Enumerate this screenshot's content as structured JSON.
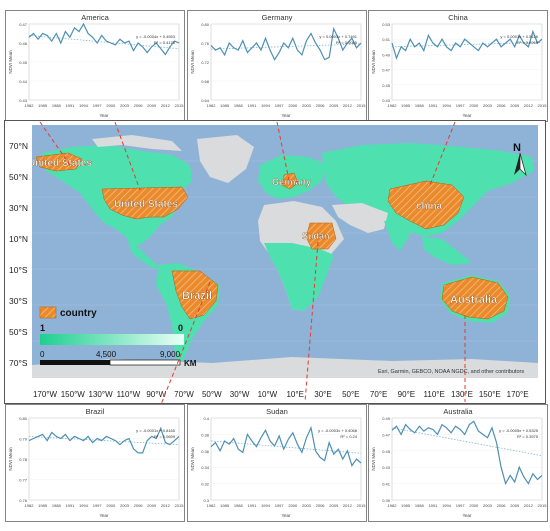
{
  "chart_data": [
    {
      "type": "line",
      "title": "America",
      "xlabel": "Year",
      "ylabel": "NDVI Mean",
      "x_ticks": [
        "1982",
        "1985",
        "1988",
        "1991",
        "1994",
        "1997",
        "2000",
        "2003",
        "2006",
        "2009",
        "2012",
        "2015"
      ],
      "y_ticks": [
        "0.43",
        "0.44",
        "0.45",
        "0.46",
        "0.47"
      ],
      "ylim": [
        0.43,
        0.47
      ],
      "equation": "y = -0.0004x + 0.4553",
      "r2": "R² = 0.4175",
      "x": [
        1982,
        1983,
        1984,
        1985,
        1986,
        1987,
        1988,
        1989,
        1990,
        1991,
        1992,
        1993,
        1994,
        1995,
        1996,
        1997,
        1998,
        1999,
        2000,
        2001,
        2002,
        2003,
        2004,
        2005,
        2006,
        2007,
        2008,
        2009,
        2010,
        2011,
        2012,
        2013,
        2014,
        2015
      ],
      "values": [
        0.463,
        0.465,
        0.462,
        0.465,
        0.464,
        0.461,
        0.465,
        0.46,
        0.466,
        0.463,
        0.468,
        0.466,
        0.47,
        0.465,
        0.463,
        0.46,
        0.464,
        0.461,
        0.46,
        0.459,
        0.462,
        0.46,
        0.461,
        0.456,
        0.46,
        0.458,
        0.455,
        0.458,
        0.46,
        0.457,
        0.454,
        0.458,
        0.461,
        0.46
      ],
      "trend": [
        0.464,
        0.457
      ]
    },
    {
      "type": "line",
      "title": "Germany",
      "xlabel": "Year",
      "ylabel": "NDVI Mean",
      "x_ticks": [
        "1982",
        "1985",
        "1988",
        "1991",
        "1994",
        "1997",
        "2000",
        "2003",
        "2006",
        "2009",
        "2012",
        "2015"
      ],
      "y_ticks": [
        "0.64",
        "0.68",
        "0.72",
        "0.76",
        "0.80"
      ],
      "ylim": [
        0.64,
        0.8
      ],
      "equation": "y = 0.0003x + 0.7491",
      "r2": "R² = 0.0085",
      "x": [
        1982,
        1983,
        1984,
        1985,
        1986,
        1987,
        1988,
        1989,
        1990,
        1991,
        1992,
        1993,
        1994,
        1995,
        1996,
        1997,
        1998,
        1999,
        2000,
        2001,
        2002,
        2003,
        2004,
        2005,
        2006,
        2007,
        2008,
        2009,
        2010,
        2011,
        2012,
        2013,
        2014,
        2015
      ],
      "values": [
        0.755,
        0.745,
        0.75,
        0.735,
        0.76,
        0.75,
        0.745,
        0.765,
        0.74,
        0.75,
        0.76,
        0.745,
        0.77,
        0.745,
        0.725,
        0.74,
        0.76,
        0.75,
        0.77,
        0.745,
        0.735,
        0.765,
        0.78,
        0.76,
        0.745,
        0.725,
        0.73,
        0.79,
        0.77,
        0.745,
        0.76,
        0.77,
        0.75,
        0.76
      ],
      "trend": [
        0.747,
        0.758
      ]
    },
    {
      "type": "line",
      "title": "China",
      "xlabel": "Year",
      "ylabel": "NDVI Mean",
      "x_ticks": [
        "1982",
        "1985",
        "1988",
        "1991",
        "1994",
        "1997",
        "2000",
        "2003",
        "2006",
        "2009",
        "2012",
        "2015"
      ],
      "y_ticks": [
        "0.43",
        "0.45",
        "0.47",
        "0.49",
        "0.51",
        "0.53"
      ],
      "ylim": [
        0.43,
        0.53
      ],
      "equation": "y = 0.0001x + 0.5126",
      "r2": "R² = 0.0265",
      "x": [
        1982,
        1983,
        1984,
        1985,
        1986,
        1987,
        1988,
        1989,
        1990,
        1991,
        1992,
        1993,
        1994,
        1995,
        1996,
        1997,
        1998,
        1999,
        2000,
        2001,
        2002,
        2003,
        2004,
        2005,
        2006,
        2007,
        2008,
        2009,
        2010,
        2011,
        2012,
        2013,
        2014,
        2015
      ],
      "values": [
        0.505,
        0.485,
        0.5,
        0.495,
        0.51,
        0.5,
        0.505,
        0.495,
        0.515,
        0.505,
        0.5,
        0.51,
        0.5,
        0.495,
        0.505,
        0.5,
        0.51,
        0.505,
        0.5,
        0.495,
        0.505,
        0.5,
        0.505,
        0.51,
        0.5,
        0.505,
        0.51,
        0.5,
        0.515,
        0.505,
        0.5,
        0.52,
        0.505,
        0.51
      ],
      "trend": [
        0.5,
        0.506
      ]
    },
    {
      "type": "line",
      "title": "Brazil",
      "xlabel": "Year",
      "ylabel": "NDVI Mean",
      "x_ticks": [
        "1982",
        "1985",
        "1988",
        "1991",
        "1994",
        "1997",
        "2000",
        "2003",
        "2006",
        "2009",
        "2012",
        "2015"
      ],
      "y_ticks": [
        "0.76",
        "0.77",
        "0.78",
        "0.79",
        "0.80"
      ],
      "ylim": [
        0.76,
        0.8
      ],
      "equation": "y = -0.0001x + 0.8165",
      "r2": "R² = 0.0699",
      "x": [
        1982,
        1983,
        1984,
        1985,
        1986,
        1987,
        1988,
        1989,
        1990,
        1991,
        1992,
        1993,
        1994,
        1995,
        1996,
        1997,
        1998,
        1999,
        2000,
        2001,
        2002,
        2003,
        2004,
        2005,
        2006,
        2007,
        2008,
        2009,
        2010,
        2011,
        2012,
        2013,
        2014,
        2015
      ],
      "values": [
        0.789,
        0.79,
        0.791,
        0.792,
        0.789,
        0.793,
        0.791,
        0.79,
        0.792,
        0.789,
        0.791,
        0.79,
        0.789,
        0.791,
        0.788,
        0.79,
        0.789,
        0.791,
        0.79,
        0.789,
        0.787,
        0.789,
        0.79,
        0.785,
        0.783,
        0.783,
        0.789,
        0.791,
        0.79,
        0.795,
        0.788,
        0.787,
        0.789,
        0.791
      ],
      "trend": [
        0.791,
        0.787
      ]
    },
    {
      "type": "line",
      "title": "Sudan",
      "xlabel": "Year",
      "ylabel": "NDVI Mean",
      "x_ticks": [
        "1982",
        "1985",
        "1988",
        "1991",
        "1994",
        "1997",
        "2000",
        "2003",
        "2006",
        "2009",
        "2012",
        "2015"
      ],
      "y_ticks": [
        "0.3",
        "0.32",
        "0.34",
        "0.36",
        "0.38",
        "0.4"
      ],
      "ylim": [
        0.3,
        0.4
      ],
      "equation": "y = -0.0003x + 0.4068",
      "r2": "R² = 0.24",
      "x": [
        1982,
        1983,
        1984,
        1985,
        1986,
        1987,
        1988,
        1989,
        1990,
        1991,
        1992,
        1993,
        1994,
        1995,
        1996,
        1997,
        1998,
        1999,
        2000,
        2001,
        2002,
        2003,
        2004,
        2005,
        2006,
        2007,
        2008,
        2009,
        2010,
        2011,
        2012,
        2013,
        2014,
        2015
      ],
      "values": [
        0.365,
        0.37,
        0.36,
        0.372,
        0.368,
        0.375,
        0.362,
        0.358,
        0.38,
        0.372,
        0.365,
        0.376,
        0.385,
        0.372,
        0.366,
        0.378,
        0.362,
        0.374,
        0.382,
        0.368,
        0.358,
        0.376,
        0.388,
        0.36,
        0.352,
        0.348,
        0.37,
        0.356,
        0.362,
        0.35,
        0.36,
        0.342,
        0.35,
        0.345
      ],
      "trend": [
        0.372,
        0.357
      ]
    },
    {
      "type": "line",
      "title": "Australia",
      "xlabel": "Year",
      "ylabel": "NDVI Mean",
      "x_ticks": [
        "1982",
        "1985",
        "1988",
        "1991",
        "1994",
        "1997",
        "2000",
        "2003",
        "2006",
        "2009",
        "2012",
        "2015"
      ],
      "y_ticks": [
        "0.39",
        "0.41",
        "0.43",
        "0.45",
        "0.47",
        "0.49"
      ],
      "ylim": [
        0.39,
        0.49
      ],
      "equation": "y = -0.0005x + 0.5325",
      "r2": "R² = 0.3975",
      "x": [
        1982,
        1983,
        1984,
        1985,
        1986,
        1987,
        1988,
        1989,
        1990,
        1991,
        1992,
        1993,
        1994,
        1995,
        1996,
        1997,
        1998,
        1999,
        2000,
        2001,
        2002,
        2003,
        2004,
        2005,
        2006,
        2007,
        2008,
        2009,
        2010,
        2011,
        2012,
        2013,
        2014,
        2015
      ],
      "values": [
        0.475,
        0.48,
        0.47,
        0.482,
        0.476,
        0.472,
        0.48,
        0.474,
        0.478,
        0.476,
        0.47,
        0.482,
        0.478,
        0.472,
        0.48,
        0.476,
        0.47,
        0.482,
        0.486,
        0.474,
        0.47,
        0.466,
        0.478,
        0.46,
        0.43,
        0.41,
        0.42,
        0.412,
        0.43,
        0.418,
        0.41,
        0.422,
        0.415,
        0.42
      ],
      "trend": [
        0.478,
        0.444
      ]
    }
  ],
  "map": {
    "north_label": "N",
    "lat_labels": [
      "70°N",
      "50°N",
      "30°N",
      "10°N",
      "10°S",
      "30°S",
      "50°S",
      "70°S"
    ],
    "lon_labels": [
      "170°W",
      "150°W",
      "130°W",
      "110°W",
      "90°W",
      "70°W",
      "50°W",
      "30°W",
      "10°W",
      "10°E",
      "30°E",
      "50°E",
      "70°E",
      "90°E",
      "110°E",
      "130°E",
      "150°E",
      "170°E"
    ],
    "countries": [
      {
        "name": "United States",
        "label": "United States"
      },
      {
        "name": "Alaska",
        "label": "United States"
      },
      {
        "name": "Germany",
        "label": "Germany"
      },
      {
        "name": "China",
        "label": "china"
      },
      {
        "name": "Sudan",
        "label": "Sudan"
      },
      {
        "name": "Brazil",
        "label": "Brazil"
      },
      {
        "name": "Australia",
        "label": "Australia"
      }
    ],
    "legend": {
      "country_label": "country",
      "gradient_high": "1",
      "gradient_low": "0",
      "scale_0": "0",
      "scale_mid": "4,500",
      "scale_max": "9,000",
      "scale_unit": "KM"
    },
    "attribution": "Esri, Garmin, GEBCO, NOAA NGDC, and other contributors",
    "colors": {
      "ocean": "#8fb3d6",
      "land": "#d9dbdc",
      "vegetation": "#4fe0b0",
      "country": "#ea8a2c",
      "leader": "#e23b2e"
    }
  }
}
